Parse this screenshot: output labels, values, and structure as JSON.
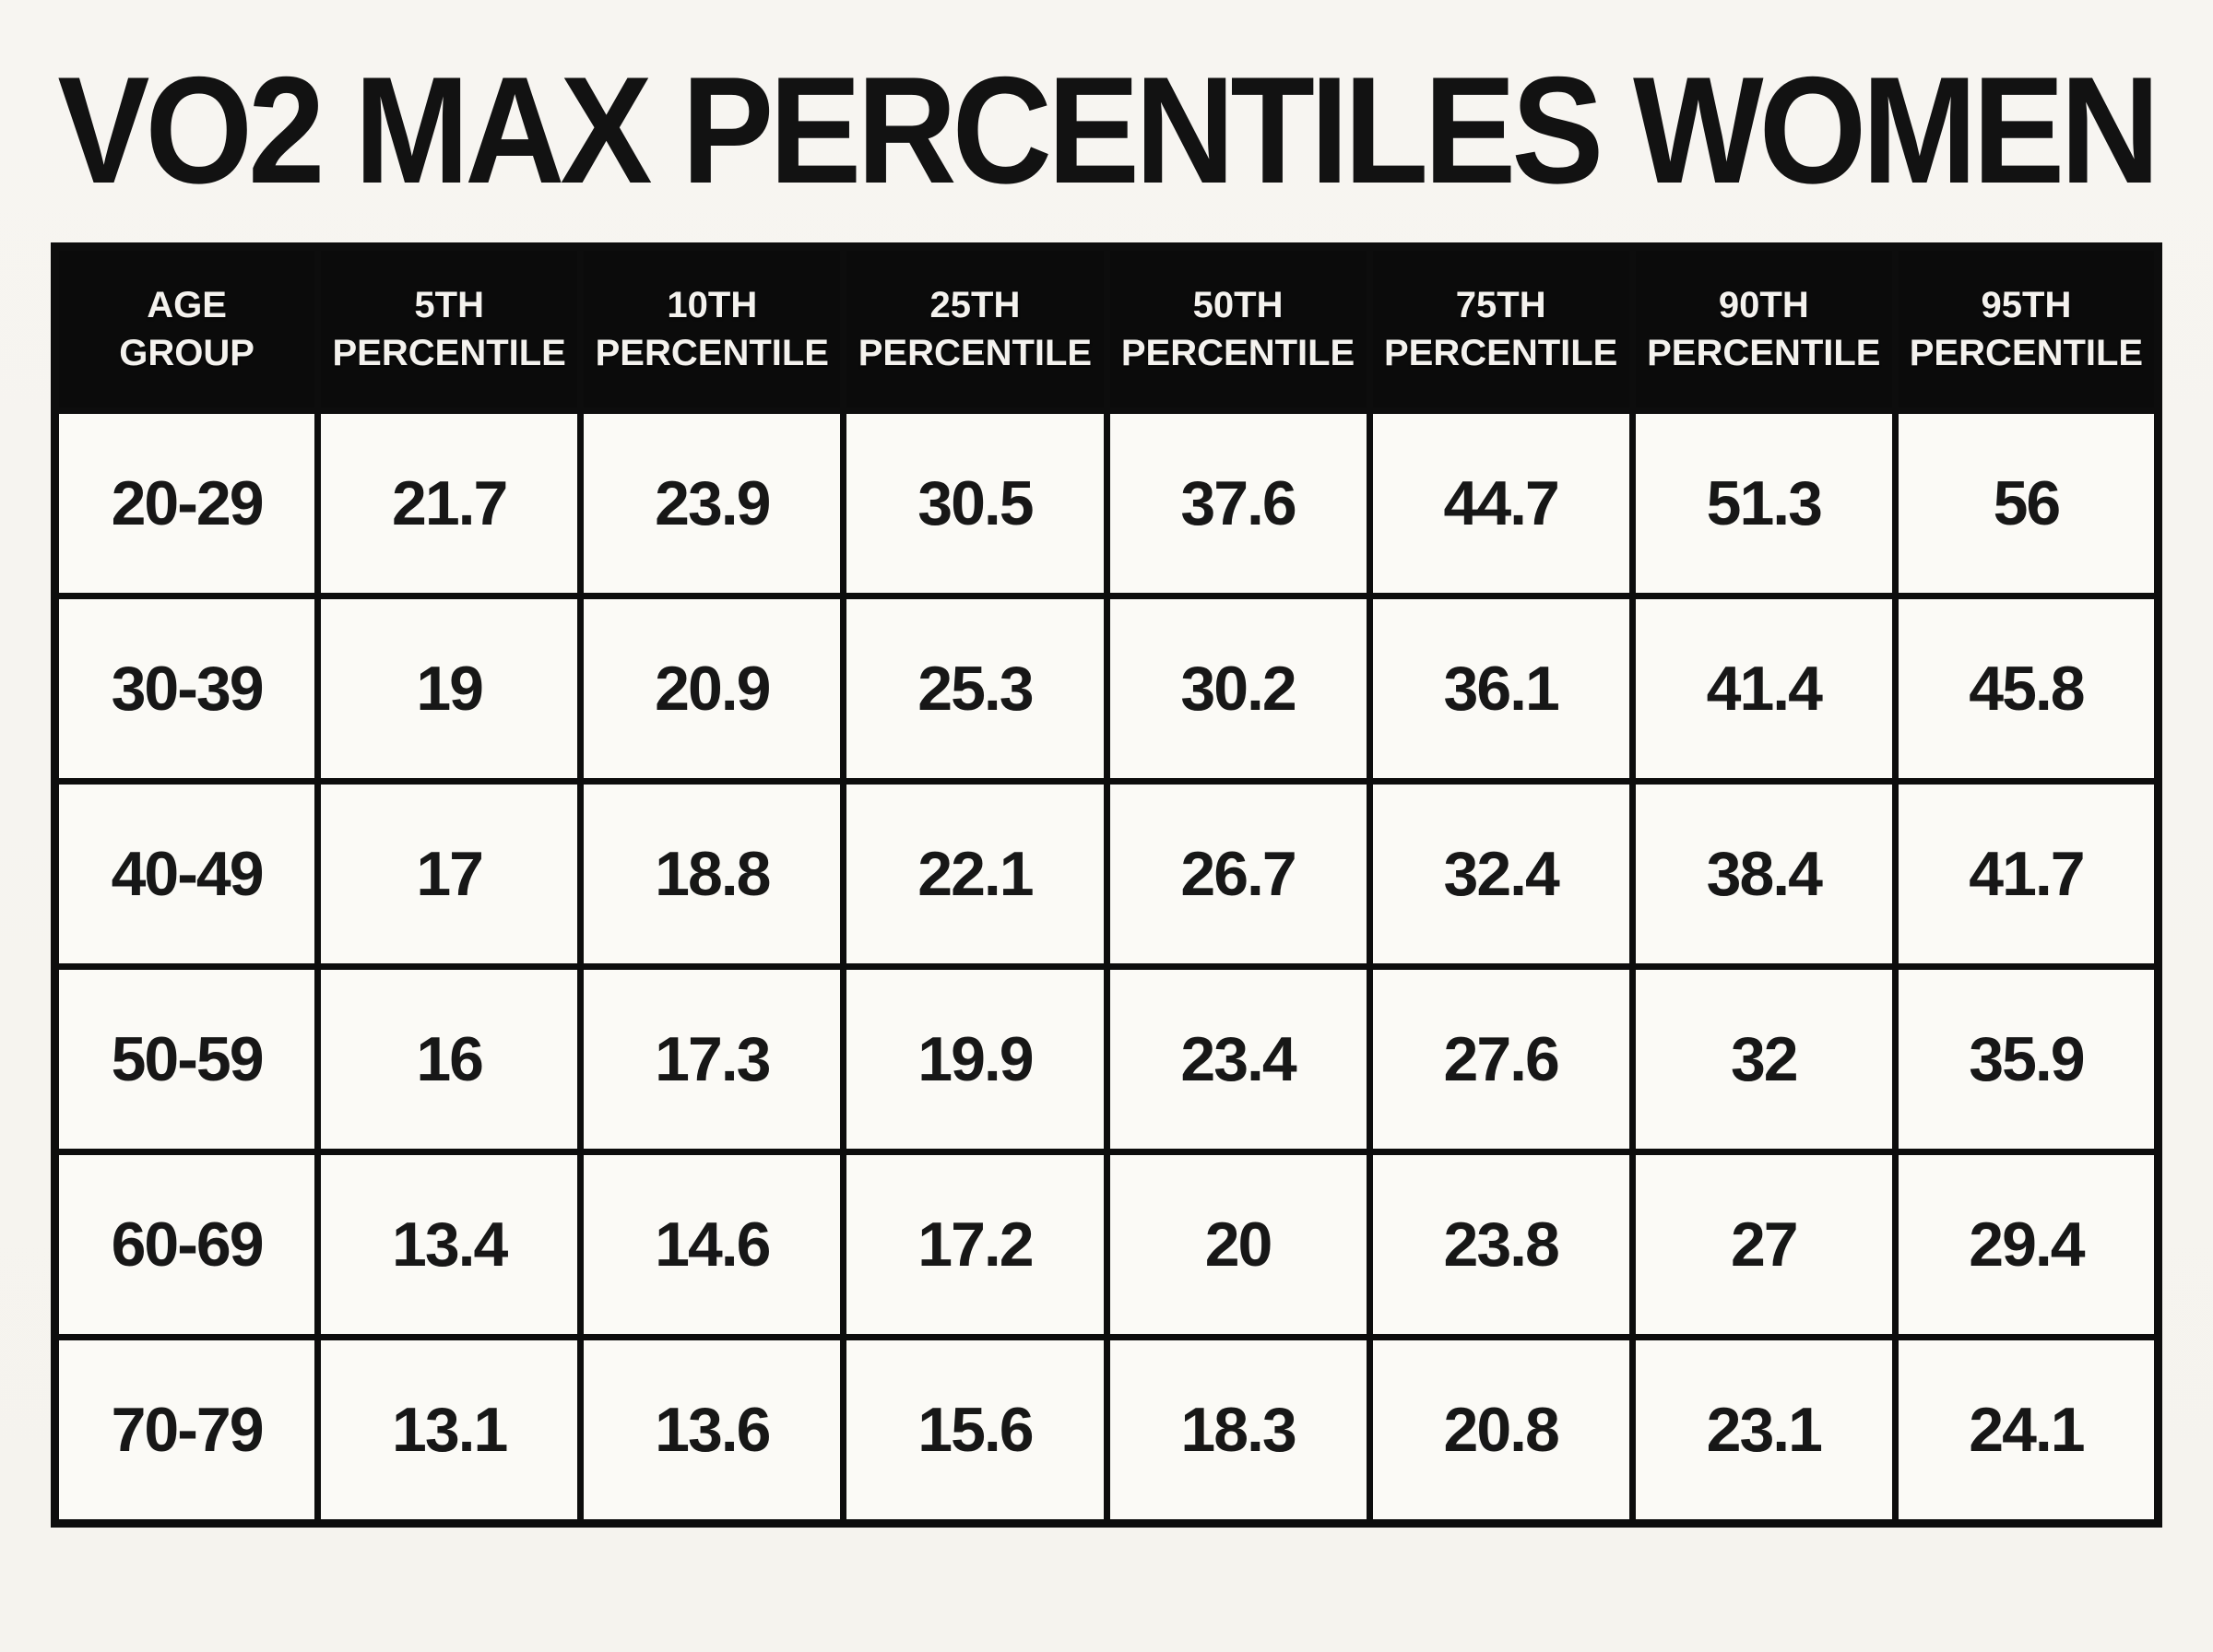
{
  "title": "VO2 MAX PERCENTILES WOMEN",
  "colors": {
    "page_bg": "#f6f4ef",
    "header_bg": "#0b0b0b",
    "header_text": "#f4f2ee",
    "cell_bg": "#fbfaf6",
    "border": "#0d0d0d",
    "title_text": "#121212"
  },
  "chart_data": {
    "type": "table",
    "title": "VO2 MAX PERCENTILES WOMEN",
    "columns": [
      "AGE GROUP",
      "5TH PERCENTILE",
      "10TH PERCENTILE",
      "25TH PERCENTILE",
      "50TH PERCENTILE",
      "75TH PERCENTILE",
      "90TH PERCENTILE",
      "95TH PERCENTILE"
    ],
    "header_lines": [
      "AGE\nGROUP",
      "5TH\nPERCENTILE",
      "10TH\nPERCENTILE",
      "25TH\nPERCENTILE",
      "50TH\nPERCENTILE",
      "75TH\nPERCENTILE",
      "90TH\nPERCENTILE",
      "95TH\nPERCENTILE"
    ],
    "rows": [
      [
        "20-29",
        21.7,
        23.9,
        30.5,
        37.6,
        44.7,
        51.3,
        56
      ],
      [
        "30-39",
        19,
        20.9,
        25.3,
        30.2,
        36.1,
        41.4,
        45.8
      ],
      [
        "40-49",
        17,
        18.8,
        22.1,
        26.7,
        32.4,
        38.4,
        41.7
      ],
      [
        "50-59",
        16,
        17.3,
        19.9,
        23.4,
        27.6,
        32,
        35.9
      ],
      [
        "60-69",
        13.4,
        14.6,
        17.2,
        20,
        23.8,
        27,
        29.4
      ],
      [
        "70-79",
        13.1,
        13.6,
        15.6,
        18.3,
        20.8,
        23.1,
        24.1
      ]
    ]
  }
}
